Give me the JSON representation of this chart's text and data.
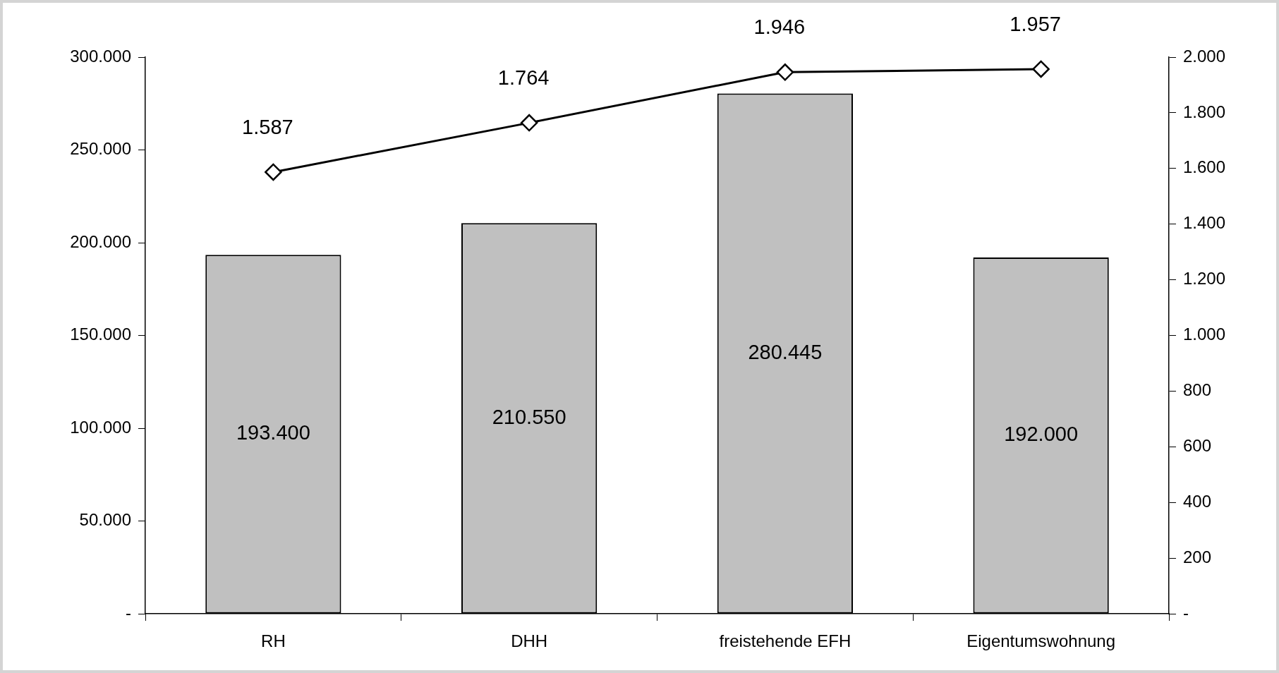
{
  "chart_data": {
    "type": "bar",
    "categories": [
      "RH",
      "DHH",
      "freistehende EFH",
      "Eigentumswohnung"
    ],
    "series": [
      {
        "color": "#c0c0c0",
        "values": [
          193400,
          210550,
          280445,
          192000
        ],
        "value_labels": [
          "193.400",
          "210.550",
          "280.445",
          "192.000"
        ]
      },
      {
        "type": "line",
        "axis": "y2",
        "color": "#000000",
        "marker": "diamond",
        "values": [
          1587,
          1764,
          1946,
          1957
        ],
        "value_labels": [
          "1.587",
          "1.764",
          "1.946",
          "1.957"
        ]
      }
    ],
    "ylim": [
      0,
      300000
    ],
    "yticks": [
      {
        "value": 0,
        "label": "-"
      },
      {
        "value": 50000,
        "label": "50.000"
      },
      {
        "value": 100000,
        "label": "100.000"
      },
      {
        "value": 150000,
        "label": "150.000"
      },
      {
        "value": 200000,
        "label": "200.000"
      },
      {
        "value": 250000,
        "label": "250.000"
      },
      {
        "value": 300000,
        "label": "300.000"
      }
    ],
    "y2lim": [
      0,
      2000
    ],
    "y2ticks": [
      {
        "value": 0,
        "label": "-"
      },
      200,
      400,
      600,
      800,
      {
        "value": 1000,
        "label": "1.000"
      },
      {
        "value": 1200,
        "label": "1.200"
      },
      {
        "value": 1400,
        "label": "1.400"
      },
      {
        "value": 1600,
        "label": "1.600"
      },
      {
        "value": 1800,
        "label": "1.800"
      },
      {
        "value": 2000,
        "label": "2.000"
      }
    ],
    "grid": false,
    "legend": false
  }
}
